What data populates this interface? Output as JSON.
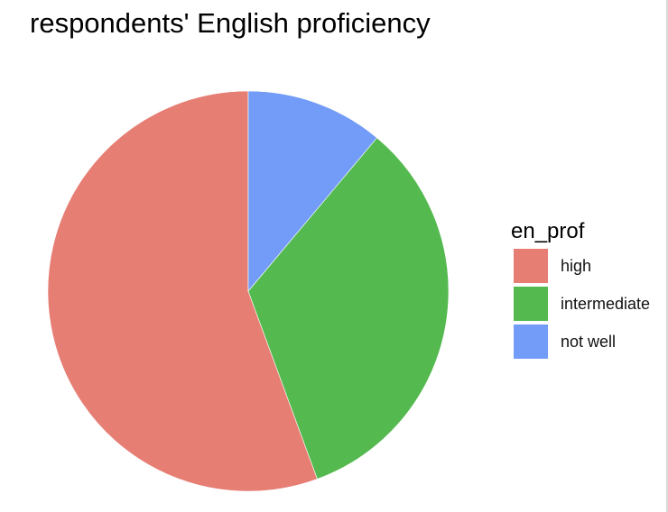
{
  "chart_data": {
    "type": "pie",
    "title": "respondents' English proficiency",
    "legend_title": "en_prof",
    "legend_position": "right",
    "slices": [
      {
        "label": "high",
        "value": 55.6,
        "color": "#E67E74"
      },
      {
        "label": "intermediate",
        "value": 33.3,
        "color": "#54B94F"
      },
      {
        "label": "not well",
        "value": 11.1,
        "color": "#739CF8"
      }
    ],
    "start": "top",
    "direction": "counterclockwise"
  }
}
